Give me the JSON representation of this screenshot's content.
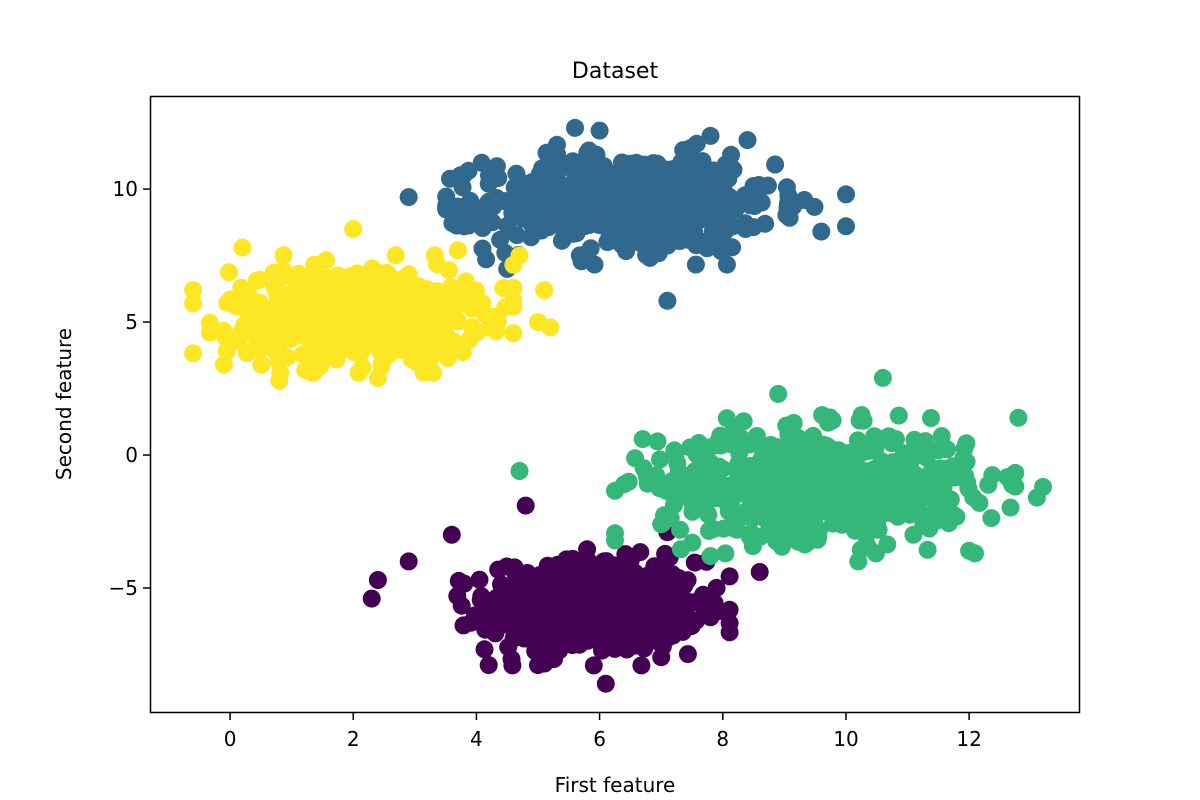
{
  "chart_data": {
    "type": "scatter",
    "title": "Dataset",
    "xlabel": "First feature",
    "ylabel": "Second feature",
    "xlim": [
      -1.3,
      13.8
    ],
    "ylim": [
      -9.7,
      13.5
    ],
    "xticks": [
      0,
      2,
      4,
      6,
      8,
      10,
      12
    ],
    "xtick_labels": [
      "0",
      "2",
      "4",
      "6",
      "8",
      "10",
      "12"
    ],
    "yticks": [
      -5,
      0,
      5,
      10
    ],
    "ytick_labels": [
      "−5",
      "0",
      "5",
      "10"
    ],
    "grid": false,
    "legend": "none",
    "clusters": [
      {
        "color": "#440154",
        "center": [
          5.9,
          -5.7
        ],
        "spread": [
          0.85,
          0.85
        ],
        "count": 600,
        "outliers": [
          [
            4.8,
            -1.9
          ],
          [
            3.6,
            -3.0
          ],
          [
            2.4,
            -4.7
          ],
          [
            2.3,
            -5.4
          ],
          [
            8.6,
            -4.4
          ],
          [
            6.1,
            -8.6
          ],
          [
            4.2,
            -7.9
          ],
          [
            5.0,
            -7.9
          ],
          [
            7.0,
            -7.6
          ],
          [
            7.8,
            -6.1
          ],
          [
            2.9,
            -4.0
          ],
          [
            7.1,
            -2.9
          ]
        ]
      },
      {
        "color": "#31688e",
        "center": [
          6.5,
          9.5
        ],
        "spread": [
          1.15,
          0.9
        ],
        "count": 600,
        "outliers": [
          [
            2.9,
            9.7
          ],
          [
            5.6,
            12.3
          ],
          [
            10.0,
            9.8
          ],
          [
            10.0,
            8.6
          ],
          [
            9.6,
            8.4
          ],
          [
            7.1,
            5.8
          ],
          [
            7.8,
            12.0
          ],
          [
            4.5,
            7.0
          ],
          [
            4.2,
            10.2
          ],
          [
            3.8,
            8.6
          ],
          [
            6.0,
            12.2
          ]
        ]
      },
      {
        "color": "#35b779",
        "center": [
          9.5,
          -1.1
        ],
        "spread": [
          1.25,
          1.0
        ],
        "count": 600,
        "outliers": [
          [
            4.7,
            -0.6
          ],
          [
            6.4,
            -1.1
          ],
          [
            7.0,
            -2.6
          ],
          [
            7.8,
            -3.8
          ],
          [
            10.2,
            -4.0
          ],
          [
            12.0,
            -3.6
          ],
          [
            12.8,
            1.4
          ],
          [
            13.2,
            -1.2
          ],
          [
            13.1,
            -1.6
          ],
          [
            10.6,
            2.9
          ],
          [
            8.9,
            2.3
          ],
          [
            6.7,
            0.6
          ]
        ]
      },
      {
        "color": "#fde725",
        "center": [
          2.0,
          5.3
        ],
        "spread": [
          1.0,
          0.85
        ],
        "count": 600,
        "outliers": [
          [
            -0.6,
            6.2
          ],
          [
            2.0,
            8.5
          ],
          [
            5.2,
            4.8
          ],
          [
            5.1,
            6.2
          ],
          [
            -0.1,
            3.4
          ],
          [
            0.8,
            2.8
          ],
          [
            2.4,
            2.9
          ],
          [
            4.7,
            7.5
          ],
          [
            0.2,
            7.8
          ],
          [
            5.0,
            5.0
          ],
          [
            3.7,
            7.7
          ]
        ]
      }
    ]
  }
}
